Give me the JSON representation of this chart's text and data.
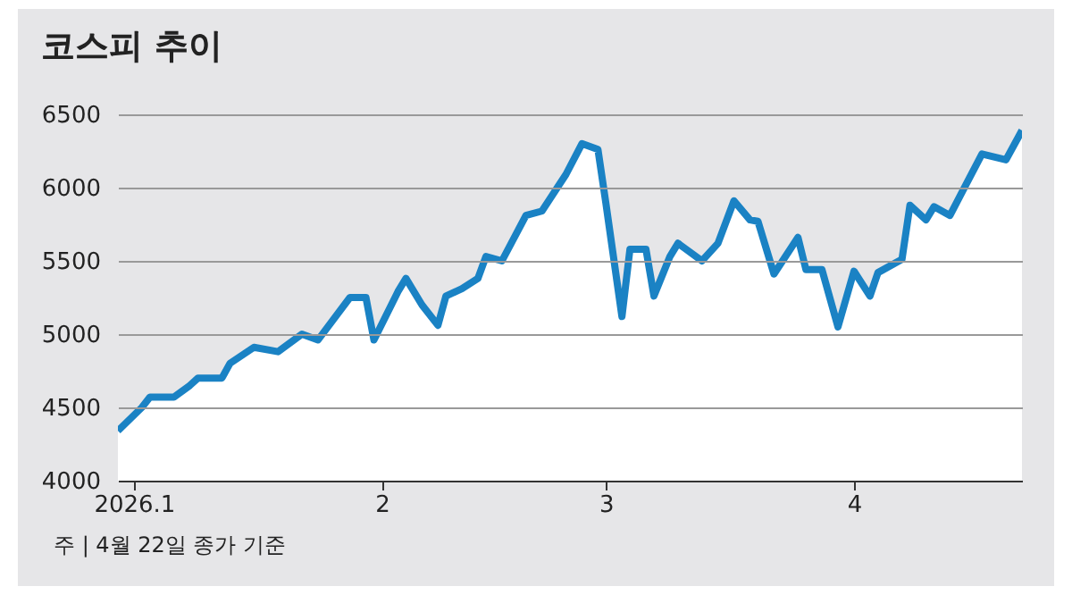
{
  "chart_data": {
    "type": "area",
    "title": "코스피 추이",
    "annotations": [
      "주 | 4월 22일 종가 기준"
    ],
    "x": [
      "2025-12-30",
      "2026-01-02",
      "2026-01-03",
      "2026-01-06",
      "2026-01-08",
      "2026-01-09",
      "2026-01-12",
      "2026-01-13",
      "2026-01-16",
      "2026-01-19",
      "2026-01-22",
      "2026-01-24",
      "2026-01-28",
      "2026-01-30",
      "2026-01-31",
      "2026-02-03",
      "2026-02-04",
      "2026-02-06",
      "2026-02-08",
      "2026-02-09",
      "2026-02-11",
      "2026-02-13",
      "2026-02-14",
      "2026-02-16",
      "2026-02-19",
      "2026-02-21",
      "2026-02-24",
      "2026-02-26",
      "2026-02-28",
      "2026-03-01",
      "2026-03-03",
      "2026-03-04",
      "2026-03-06",
      "2026-03-07",
      "2026-03-09",
      "2026-03-10",
      "2026-03-13",
      "2026-03-15",
      "2026-03-17",
      "2026-03-19",
      "2026-03-20",
      "2026-03-22",
      "2026-03-25",
      "2026-03-26",
      "2026-03-28",
      "2026-03-30",
      "2026-04-01",
      "2026-04-03",
      "2026-04-04",
      "2026-04-07",
      "2026-04-08",
      "2026-04-10",
      "2026-04-11",
      "2026-04-13",
      "2026-04-15",
      "2026-04-17",
      "2026-04-20",
      "2026-04-22"
    ],
    "series": [
      {
        "color": "#1a82c4",
        "values": [
          4340,
          4500,
          4570,
          4570,
          4650,
          4700,
          4700,
          4800,
          4910,
          4880,
          5000,
          4960,
          5250,
          5250,
          4960,
          5290,
          5380,
          5200,
          5060,
          5260,
          5310,
          5380,
          5530,
          5500,
          5810,
          5840,
          6090,
          6300,
          6260,
          5890,
          5120,
          5580,
          5580,
          5260,
          5530,
          5620,
          5500,
          5620,
          5910,
          5780,
          5770,
          5410,
          5660,
          5440,
          5440,
          5050,
          5430,
          5260,
          5420,
          5510,
          5880,
          5780,
          5870,
          5810,
          6020,
          6230,
          6190,
          6390
        ]
      }
    ],
    "xlim": [
      "2025-12-30",
      "2026-04-22"
    ],
    "xticks": [
      {
        "value": "2026-01-01",
        "label": "2026.1"
      },
      {
        "value": "2026-02-01",
        "label": "2"
      },
      {
        "value": "2026-03-01",
        "label": "3"
      },
      {
        "value": "2026-04-01",
        "label": "4"
      }
    ],
    "ylim": [
      4000,
      6500
    ],
    "yticks": [
      4000,
      4500,
      5000,
      5500,
      6000,
      6500
    ],
    "grid": "y"
  }
}
